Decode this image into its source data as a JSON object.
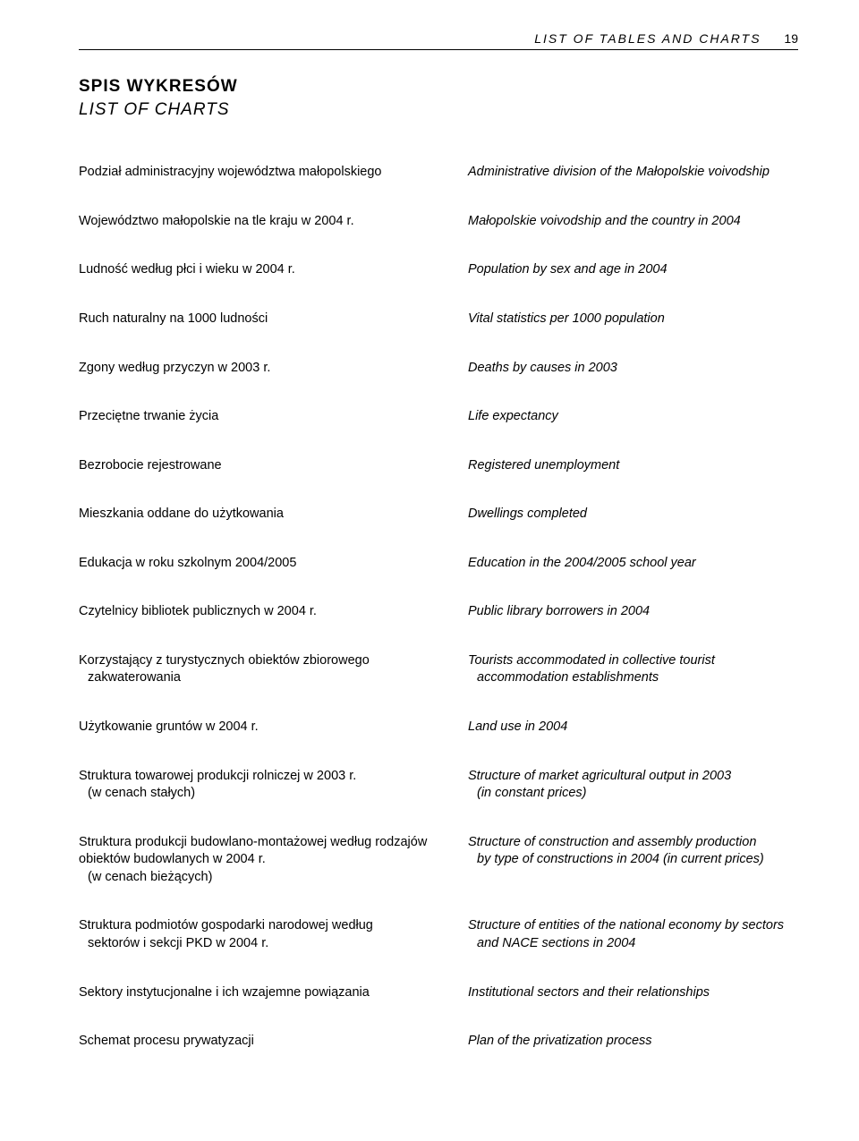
{
  "header": {
    "running_title": "LIST OF TABLES AND CHARTS",
    "page_number": "19"
  },
  "section": {
    "title": "SPIS WYKRESÓW",
    "subtitle": "LIST OF CHARTS"
  },
  "entries": [
    {
      "pl": "Podział administracyjny województwa małopolskiego",
      "en": "Administrative division of the Małopolskie voivodship"
    },
    {
      "pl": "Województwo małopolskie na tle kraju w 2004 r.",
      "en": "Małopolskie voivodship and the country in 2004"
    },
    {
      "pl": "Ludność według płci i wieku w 2004 r.",
      "en": "Population by sex and age in 2004"
    },
    {
      "pl": "Ruch naturalny na 1000 ludności",
      "en": "Vital statistics per 1000 population"
    },
    {
      "pl": "Zgony według przyczyn w 2003 r.",
      "en": "Deaths by causes in 2003"
    },
    {
      "pl": "Przeciętne trwanie życia",
      "en": "Life expectancy"
    },
    {
      "pl": "Bezrobocie rejestrowane",
      "en": "Registered unemployment"
    },
    {
      "pl": "Mieszkania oddane do użytkowania",
      "en": "Dwellings completed"
    },
    {
      "pl": "Edukacja w roku szkolnym 2004/2005",
      "en": "Education in the 2004/2005 school year"
    },
    {
      "pl": "Czytelnicy bibliotek publicznych w 2004 r.",
      "en": "Public library borrowers in 2004"
    },
    {
      "pl": "Korzystający z turystycznych obiektów zbiorowego",
      "pl_sub": "zakwaterowania",
      "en": "Tourists accommodated in collective tourist",
      "en_sub": "accommodation establishments"
    },
    {
      "pl": "Użytkowanie gruntów w 2004 r.",
      "en": "Land use in 2004"
    },
    {
      "pl": "Struktura towarowej produkcji rolniczej w 2003 r.",
      "pl_sub": "(w cenach stałych)",
      "en": "Structure of market agricultural output in 2003",
      "en_sub": "(in constant prices)"
    },
    {
      "pl": "Struktura produkcji budowlano-montażowej według rodzajów obiektów budowlanych w 2004 r.",
      "pl_sub": "(w cenach bieżących)",
      "en": "Structure of construction and assembly production",
      "en_sub": "by type of constructions in 2004 (in current prices)"
    },
    {
      "pl": "Struktura podmiotów gospodarki narodowej według",
      "pl_sub": "sektorów i sekcji PKD w 2004 r.",
      "en": "Structure of entities of the national economy by sectors",
      "en_sub": "and NACE sections in 2004"
    },
    {
      "pl": "Sektory instytucjonalne i ich wzajemne powiązania",
      "en": "Institutional sectors and their relationships"
    },
    {
      "pl": "Schemat procesu prywatyzacji",
      "en": "Plan of the privatization process"
    }
  ]
}
